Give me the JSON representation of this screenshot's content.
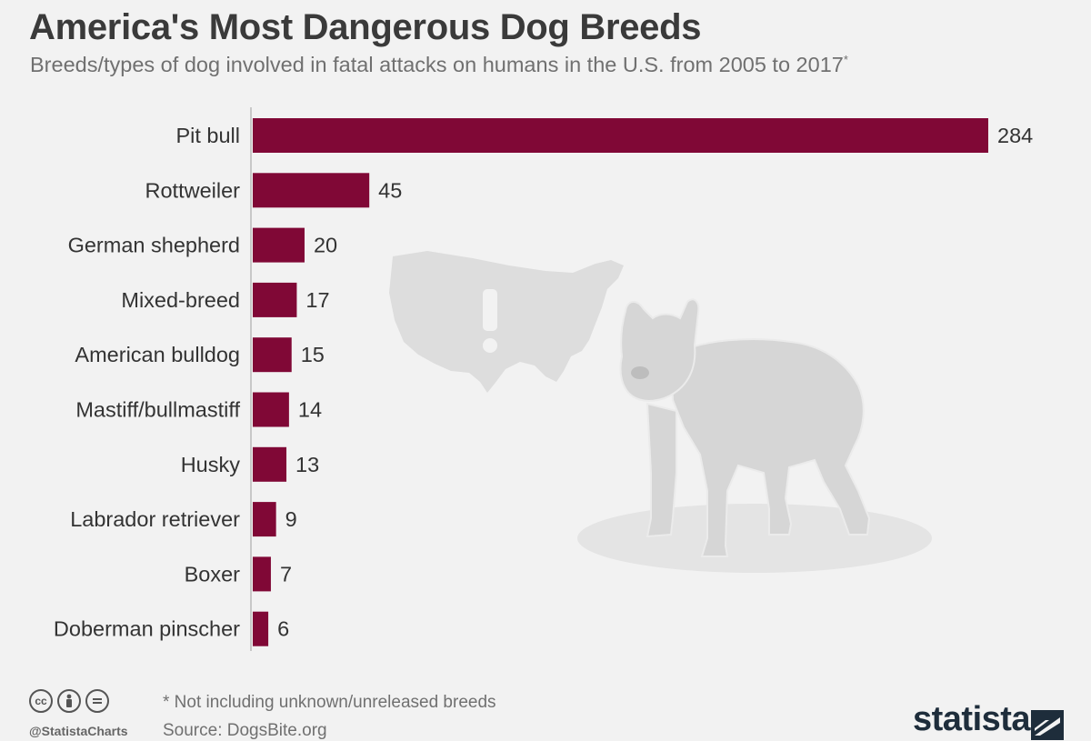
{
  "header": {
    "title": "America's Most Dangerous Dog Breeds",
    "subtitle": "Breeds/types of dog involved in fatal attacks on humans in the U.S. from 2005 to 2017",
    "subtitle_mark": "*"
  },
  "chart_data": {
    "type": "bar",
    "orientation": "horizontal",
    "categories": [
      "Pit bull",
      "Rottweiler",
      "German shepherd",
      "Mixed-breed",
      "American bulldog",
      "Mastiff/bullmastiff",
      "Husky",
      "Labrador retriever",
      "Boxer",
      "Doberman pinscher"
    ],
    "values": [
      284,
      45,
      20,
      17,
      15,
      14,
      13,
      9,
      7,
      6
    ],
    "title": "America's Most Dangerous Dog Breeds",
    "xlabel": "",
    "ylabel": "",
    "xlim": [
      0,
      284
    ],
    "grid": false,
    "data_labels": true,
    "bar_color": "#800836"
  },
  "footer": {
    "note": "* Not including unknown/unreleased breeds",
    "source": "Source: DogsBite.org",
    "handle": "@StatistaCharts",
    "brand": "statista",
    "license_icons": [
      "cc-icon",
      "attribution-icon",
      "no-derivatives-icon"
    ]
  },
  "colors": {
    "bar": "#800836",
    "title": "#3a3a3a",
    "subtitle": "#707070",
    "illustration": "#dddddd",
    "brand": "#1e2d3b"
  }
}
